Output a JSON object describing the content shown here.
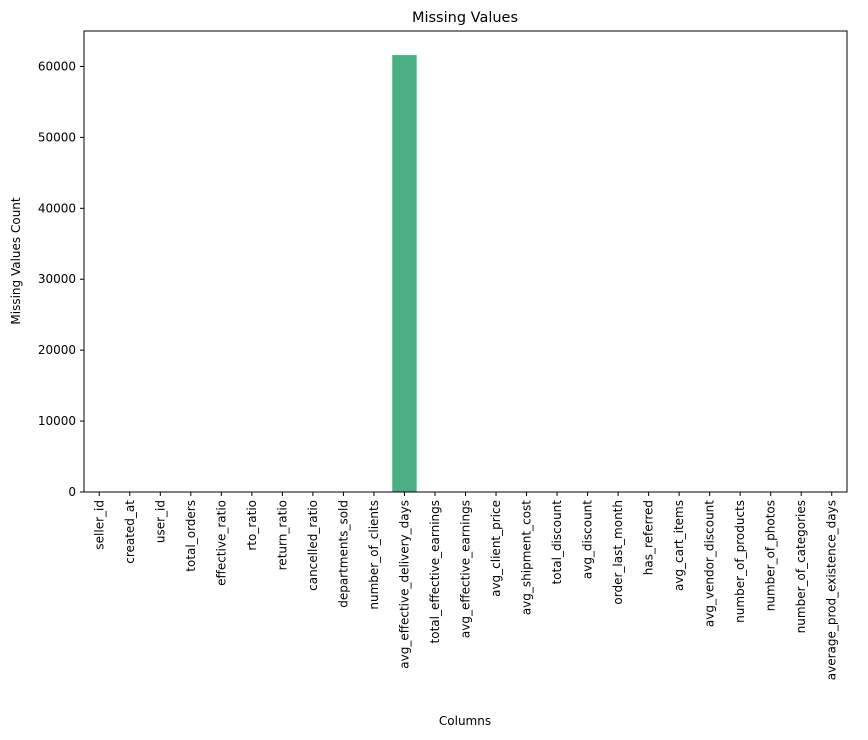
{
  "chart_data": {
    "type": "bar",
    "title": "Missing Values",
    "xlabel": "Columns",
    "ylabel": "Missing Values Count",
    "ylim": [
      0,
      65000
    ],
    "yticks": [
      0,
      10000,
      20000,
      30000,
      40000,
      50000,
      60000
    ],
    "grid": false,
    "bar_color": "#4aaf83",
    "categories": [
      "seller_id",
      "created_at",
      "user_id",
      "total_orders",
      "effective_ratio",
      "rto_ratio",
      "return_ratio",
      "cancelled_ratio",
      "departments_sold",
      "number_of_clients",
      "avg_effective_delivery_days",
      "total_effective_earnings",
      "avg_effective_earnings",
      "avg_client_price",
      "avg_shipment_cost",
      "total_discount",
      "avg_discount",
      "order_last_month",
      "has_referred",
      "avg_cart_items",
      "avg_vendor_discount",
      "number_of_products",
      "number_of_photos",
      "number_of_categories",
      "average_prod_existence_days"
    ],
    "values": [
      0,
      0,
      0,
      0,
      0,
      0,
      0,
      0,
      0,
      0,
      61600,
      0,
      0,
      0,
      0,
      0,
      0,
      0,
      0,
      0,
      0,
      0,
      0,
      0,
      0
    ]
  }
}
